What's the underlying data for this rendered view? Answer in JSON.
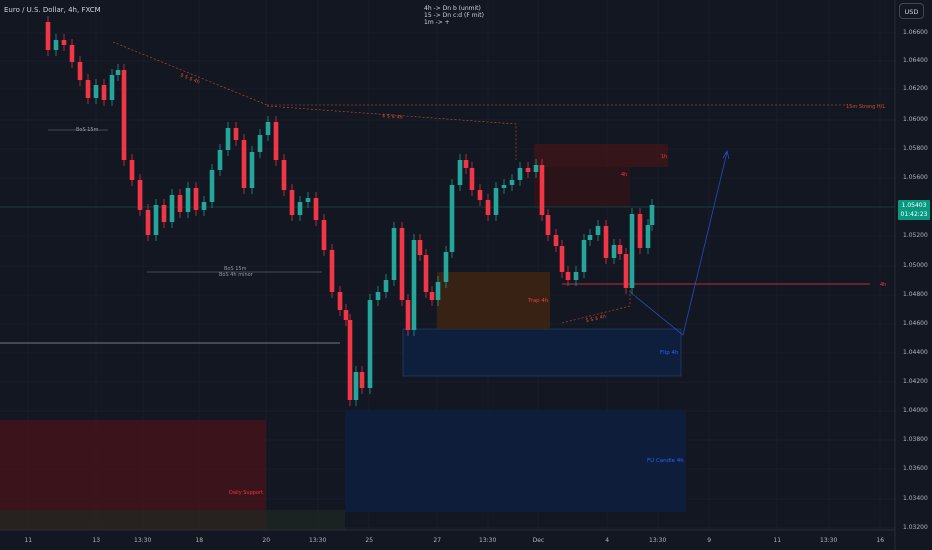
{
  "header": {
    "title": "Euro / U.S. Dollar, 4h, FXCM",
    "notes": [
      "4h -> Dn b (unmit)",
      "15 -> Dn c:d (F mit)",
      "1m -> +"
    ],
    "currency_button": "USD"
  },
  "price_badge": {
    "price": "1.05403",
    "countdown": "01:42:23"
  },
  "colors": {
    "bg": "#131722",
    "up": "#26a69a",
    "down": "#f23645",
    "grid": "#1e222d"
  },
  "y_axis": {
    "min": 1.03,
    "max": 1.07,
    "ticks": [
      "1.06600",
      "1.06400",
      "1.06200",
      "1.06000",
      "1.05800",
      "1.05600",
      "1.05200",
      "1.05000",
      "1.04800",
      "1.04600",
      "1.04400",
      "1.04200",
      "1.04000",
      "1.03800",
      "1.03600",
      "1.03400",
      "1.03200"
    ]
  },
  "x_axis": {
    "ticks": [
      "11",
      "13",
      "13:30",
      "18",
      "20",
      "13:30",
      "25",
      "27",
      "13:30",
      "Dec",
      "4",
      "13:30",
      "9",
      "11",
      "13:30",
      "16"
    ]
  },
  "annotations": {
    "bos_15m": "BoS 15m",
    "bos_15m_2": "BoS 15m",
    "bos_4h_minor": "BoS 4h minor",
    "liq_1": "$ $ $ 4h",
    "liq_2": "$ $ $ 4h",
    "liq_3": "$ $ $ 4h",
    "strong_hl": "15m Strong H/L",
    "label_1h": "1h",
    "label_4h": "4h",
    "trap": "Trap 4h",
    "flip": "Flip 4h",
    "fu_candle": "FU Candle 4h",
    "daily_support": "Daily Support",
    "right_4h": "4h"
  }
}
